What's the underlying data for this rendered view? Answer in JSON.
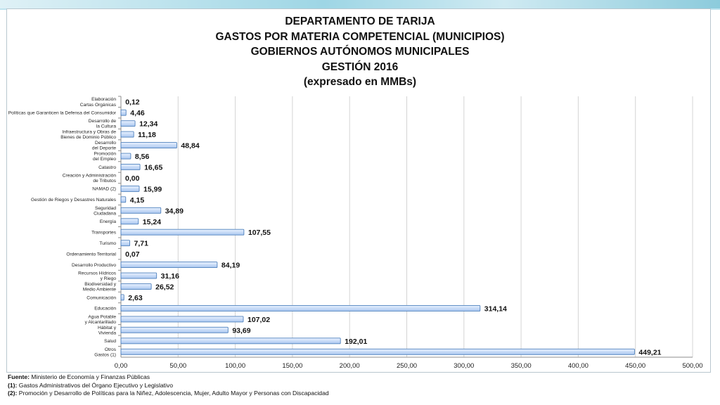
{
  "title_lines": [
    "DEPARTAMENTO DE TARIJA",
    "GASTOS POR MATERIA COMPETENCIAL (MUNICIPIOS)",
    "GOBIERNOS AUTÓNOMOS MUNICIPALES",
    "GESTIÓN 2016",
    "(expresado en MMBs)"
  ],
  "notes": [
    {
      "label": "Fuente:",
      "text": " Ministerio de Economía y Finanzas Públicas"
    },
    {
      "label": "(1):",
      "text": " Gastos Administrativos del Órgano Ejecutivo y Legislativo"
    },
    {
      "label": "(2):",
      "text": " Promoción y Desarrollo de Políticas para la Niñez, Adolescencia, Mujer, Adulto Mayor y Personas con Discapacidad"
    }
  ],
  "colors": {
    "bar_fill_top": "#e9f2ff",
    "bar_fill_bottom": "#a9c6ef",
    "bar_stroke": "#4f81bd",
    "grid": "#d4d4d4",
    "axis": "#8c8c8c"
  },
  "chart_data": {
    "type": "bar",
    "orientation": "horizontal",
    "categories": [
      "Elaboración\nCartas Orgánicas",
      "Políticas que Garanticen la Defensa del Consumidor",
      "Desarrollo de\nla Cultura",
      "Infraestructura y Obras de\nBienes de Dominio Público",
      "Desarrollo\ndel Deporte",
      "Promoción\ndel Empleo",
      "Catastro",
      "Creación y Administración\nde Tributos",
      "NAMAD (2)",
      "Gestión de Riegos y Desastres Naturales",
      "Seguridad\nCiudadana",
      "Energía",
      "Transportes",
      "Turismo",
      "Ordenamiento Territorial",
      "Desarrollo Productivo",
      "Recursos Hídricos\ny Riego",
      "Biodiversidad y\nMedio Ambiente",
      "Comunicación",
      "Educación",
      "Agua Potable\ny Alcantarillado",
      "Hábitat y\nVivienda",
      "Salud",
      "Otros\nGastos (1)"
    ],
    "values": [
      0.12,
      4.46,
      12.34,
      11.18,
      48.84,
      8.56,
      16.65,
      0.0,
      15.99,
      4.15,
      34.89,
      15.24,
      107.55,
      7.71,
      0.07,
      84.19,
      31.16,
      26.52,
      2.63,
      314.14,
      107.02,
      93.69,
      192.01,
      449.21
    ],
    "value_labels": [
      "0,12",
      "4,46",
      "12,34",
      "11,18",
      "48,84",
      "8,56",
      "16,65",
      "0,00",
      "15,99",
      "4,15",
      "34,89",
      "15,24",
      "107,55",
      "7,71",
      "0,07",
      "84,19",
      "31,16",
      "26,52",
      "2,63",
      "314,14",
      "107,02",
      "93,69",
      "192,01",
      "449,21"
    ],
    "xlim": [
      0,
      500
    ],
    "x_ticks": [
      "0,00",
      "50,00",
      "100,00",
      "150,00",
      "200,00",
      "250,00",
      "300,00",
      "350,00",
      "400,00",
      "450,00",
      "500,00"
    ],
    "grid": true
  }
}
